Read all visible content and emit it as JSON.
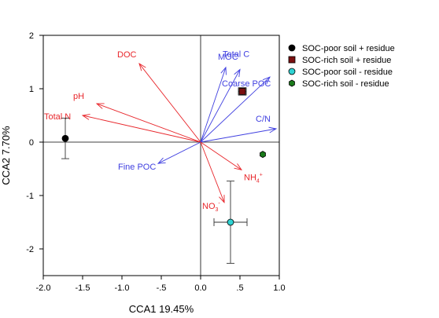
{
  "chart_data": {
    "type": "scatter",
    "xlabel": "CCA1 19.45%",
    "ylabel": "CCA2  7.70%",
    "xlim": [
      -2.0,
      1.0
    ],
    "ylim": [
      -2.5,
      2.0
    ],
    "x_ticks": [
      -2.0,
      -1.5,
      -1.0,
      -0.5,
      0.0,
      0.5,
      1.0
    ],
    "x_tick_labels": [
      "-2.0",
      "-1.5",
      "-1.0",
      "-.5",
      "0.0",
      ".5",
      "1.0"
    ],
    "y_ticks": [
      2,
      1,
      0,
      -1,
      -2
    ],
    "y_tick_labels": [
      "2",
      "1",
      "0",
      "-1",
      "-2"
    ],
    "grid": false,
    "zero_lines": true,
    "legend_position": "right",
    "series": [
      {
        "name": "SOC-poor soil + residue",
        "marker": "circle",
        "color": "#000000",
        "x": -1.72,
        "y": 0.07,
        "xerr": 0,
        "yerr": 0.38
      },
      {
        "name": "SOC-rich soil + residue",
        "marker": "square",
        "color": "#7a1010",
        "x": 0.53,
        "y": 0.95,
        "xerr": 0.05,
        "yerr": 0.07
      },
      {
        "name": "SOC-poor soil - residue",
        "marker": "circle",
        "color": "#2fd3d3",
        "x": 0.38,
        "y": -1.5,
        "xerr": 0.21,
        "yerr": 0.77
      },
      {
        "name": "SOC-rich soil - residue",
        "marker": "hexagon",
        "color": "#1a7a1a",
        "x": 0.79,
        "y": -0.23,
        "xerr": 0,
        "yerr": 0
      }
    ],
    "vectors": [
      {
        "label": "DOC",
        "color": "#e8262b",
        "x": -0.78,
        "y": 1.47
      },
      {
        "label": "pH",
        "color": "#e8262b",
        "x": -1.32,
        "y": 0.72
      },
      {
        "label": "Total N",
        "color": "#e8262b",
        "x": -1.5,
        "y": 0.5
      },
      {
        "label": "Fine POC",
        "color": "#4040e0",
        "x": -0.54,
        "y": -0.4
      },
      {
        "label": "MOC",
        "color": "#4040e0",
        "x": 0.32,
        "y": 1.4
      },
      {
        "label": "Total C",
        "color": "#4040e0",
        "x": 0.5,
        "y": 1.36
      },
      {
        "label": "Coarse POC",
        "color": "#4040e0",
        "x": 0.88,
        "y": 1.22
      },
      {
        "label": "C/N",
        "color": "#4040e0",
        "x": 0.96,
        "y": 0.25
      },
      {
        "label": "NH4+",
        "color": "#e8262b",
        "x": 0.52,
        "y": -0.52
      },
      {
        "label": "NO3-",
        "color": "#e8262b",
        "x": 0.3,
        "y": -1.13
      }
    ]
  }
}
